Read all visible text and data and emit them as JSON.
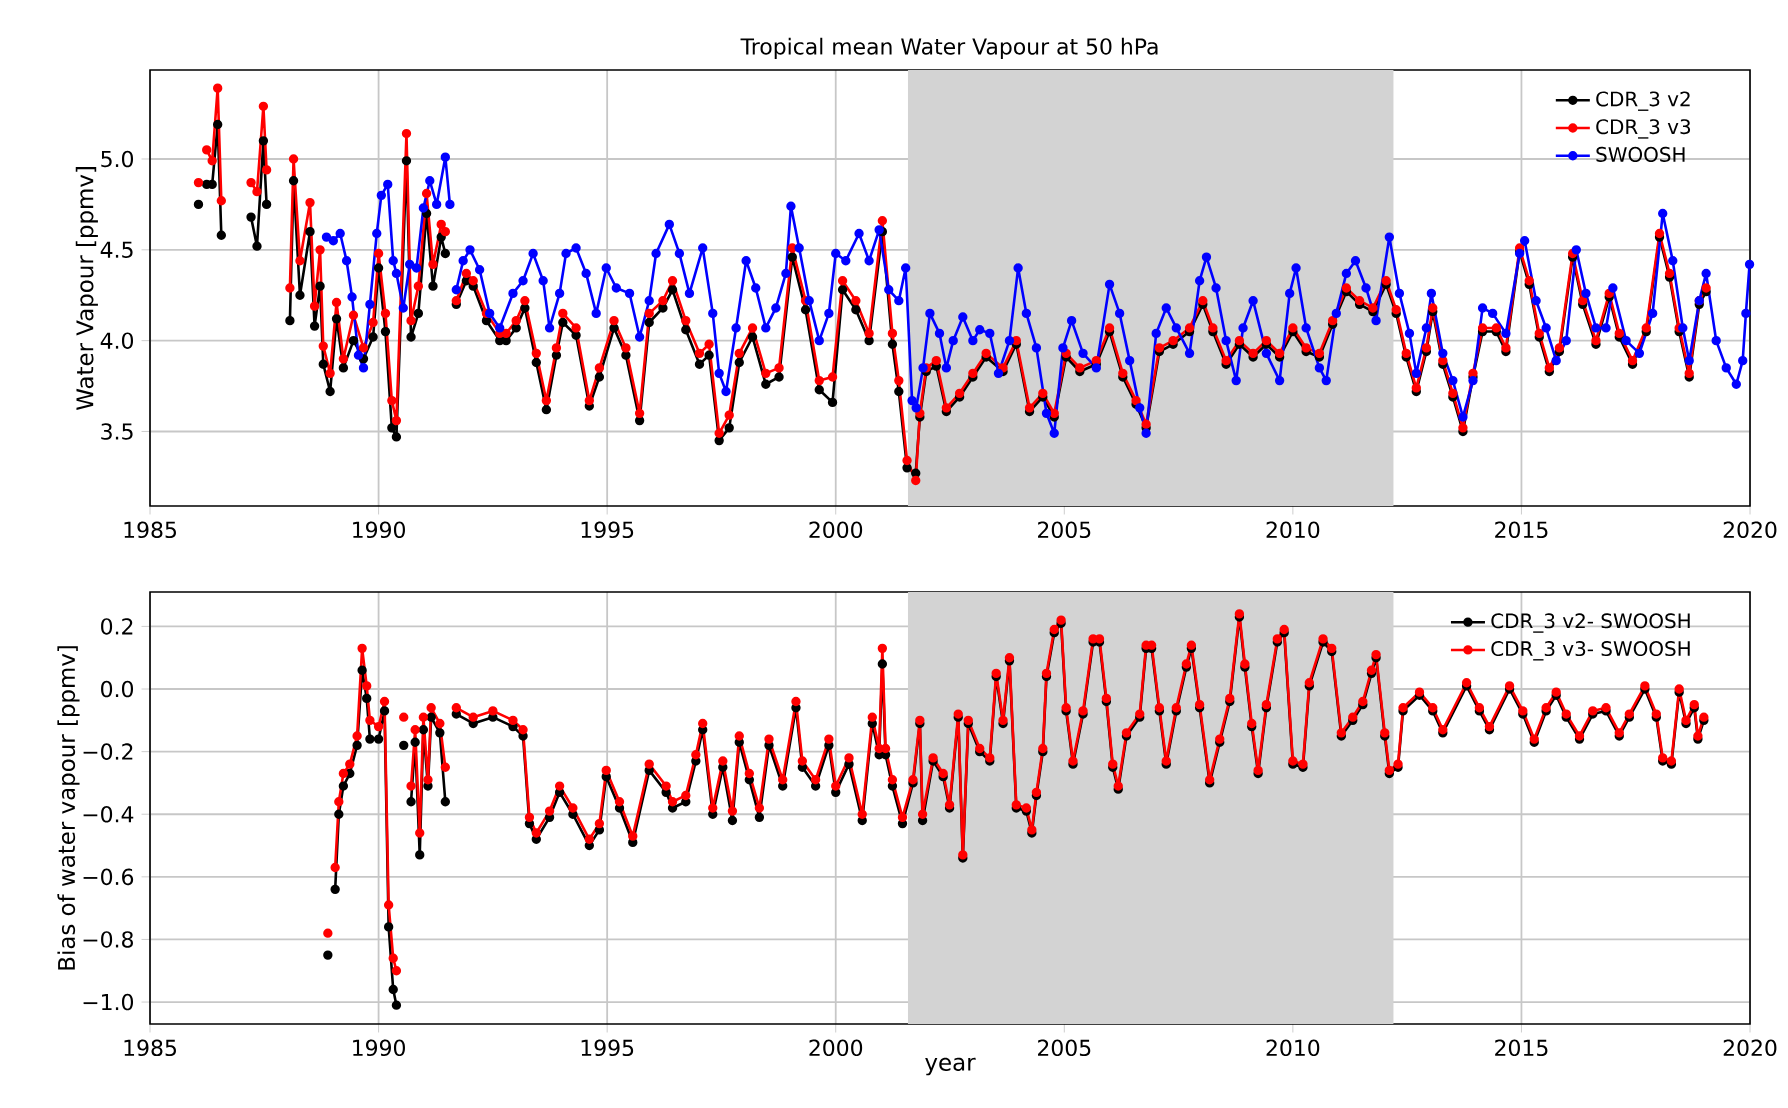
{
  "chart_data": [
    {
      "type": "line",
      "title": "Tropical mean Water Vapour at 50 hPa",
      "ylabel": "Water Vapour [ppmv]",
      "xlim": [
        1985,
        2020
      ],
      "xticks": [
        1985,
        1990,
        1995,
        2000,
        2005,
        2010,
        2015,
        2020
      ],
      "ylim": [
        3.09,
        5.49
      ],
      "yticks": [
        {
          "value": 3.5,
          "label": "3.5"
        },
        {
          "value": 4.0,
          "label": "4.0"
        },
        {
          "value": 4.5,
          "label": "4.5"
        },
        {
          "value": 5.0,
          "label": "5.0"
        }
      ],
      "grid": true,
      "legend": "top right",
      "marker": "circle",
      "bands": [
        {
          "axis": "x",
          "from": 2001.58,
          "to": 2012.2,
          "color": "#d3d3d3"
        }
      ],
      "series": [
        {
          "name": "CDR_3 v2",
          "color": "#000000",
          "x": [
            1986.06,
            1986.15,
            1986.24,
            1986.36,
            1986.48,
            1986.56,
            1986.9,
            1987.21,
            1987.34,
            1987.48,
            1987.55,
            1987.8,
            1988.06,
            1988.14,
            1988.28,
            1988.5,
            1988.6,
            1988.72,
            1988.79,
            1988.94,
            1989.08,
            1989.23,
            1989.45,
            1989.67,
            1989.88,
            1990.0,
            1990.15,
            1990.29,
            1990.39,
            1990.61,
            1990.71,
            1990.87,
            1991.05,
            1991.19,
            1991.37,
            1991.46,
            1991.6,
            1991.7,
            1991.92,
            1992.07,
            1992.36,
            1992.65,
            1992.79,
            1993.01,
            1993.2,
            1993.45,
            1993.67,
            1993.89,
            1994.03,
            1994.32,
            1994.61,
            1994.83,
            1995.15,
            1995.41,
            1995.71,
            1995.92,
            1996.22,
            1996.43,
            1996.72,
            1997.02,
            1997.23,
            1997.45,
            1997.67,
            1997.89,
            1998.18,
            1998.47,
            1998.76,
            1999.05,
            1999.34,
            1999.64,
            1999.93,
            2000.15,
            2000.44,
            2000.73,
            2001.02,
            2001.24,
            2001.38,
            2001.56,
            2001.75,
            2001.84,
            2001.98,
            2002.2,
            2002.42,
            2002.71,
            2003.0,
            2003.29,
            2003.66,
            2003.95,
            2004.24,
            2004.53,
            2004.78,
            2005.04,
            2005.34,
            2005.7,
            2005.99,
            2006.28,
            2006.57,
            2006.79,
            2007.08,
            2007.38,
            2007.74,
            2008.03,
            2008.25,
            2008.54,
            2008.83,
            2009.13,
            2009.42,
            2009.71,
            2010.0,
            2010.29,
            2010.58,
            2010.87,
            2011.17,
            2011.46,
            2011.75,
            2012.04,
            2012.26,
            2012.48,
            2012.7,
            2012.92,
            2013.06,
            2013.28,
            2013.5,
            2013.72,
            2013.94,
            2014.15,
            2014.45,
            2014.66,
            2014.96,
            2015.17,
            2015.39,
            2015.61,
            2015.83,
            2016.12,
            2016.34,
            2016.63,
            2016.92,
            2017.14,
            2017.43,
            2017.73,
            2018.02,
            2018.24,
            2018.45,
            2018.67,
            2018.89,
            2019.04
          ],
          "values": [
            4.75,
            null,
            4.86,
            4.86,
            5.19,
            4.58,
            null,
            4.68,
            4.52,
            5.1,
            4.75,
            null,
            4.11,
            4.88,
            4.25,
            4.6,
            4.08,
            4.3,
            3.87,
            3.72,
            4.12,
            3.85,
            4.0,
            3.9,
            4.02,
            4.4,
            4.05,
            3.52,
            3.47,
            4.99,
            4.02,
            4.15,
            4.7,
            4.3,
            4.57,
            4.48,
            null,
            4.2,
            4.33,
            4.3,
            4.11,
            4.0,
            4.0,
            4.07,
            4.18,
            3.88,
            3.62,
            3.92,
            4.1,
            4.03,
            3.64,
            3.8,
            4.07,
            3.92,
            3.56,
            4.1,
            4.18,
            4.28,
            4.06,
            3.87,
            3.92,
            3.45,
            3.52,
            3.88,
            4.02,
            3.76,
            3.8,
            4.46,
            4.17,
            3.73,
            3.66,
            4.28,
            4.17,
            4.0,
            4.6,
            3.98,
            3.72,
            3.3,
            3.27,
            3.58,
            3.83,
            3.86,
            3.61,
            3.69,
            3.8,
            3.91,
            3.83,
            3.98,
            3.61,
            3.69,
            3.58,
            3.91,
            3.83,
            3.87,
            4.05,
            3.8,
            3.65,
            3.52,
            3.94,
            3.98,
            4.05,
            4.2,
            4.05,
            3.87,
            3.98,
            3.91,
            3.98,
            3.91,
            4.05,
            3.94,
            3.91,
            4.09,
            4.27,
            4.2,
            4.16,
            4.31,
            4.15,
            3.91,
            3.72,
            3.94,
            4.16,
            3.87,
            3.69,
            3.5,
            3.8,
            4.05,
            4.05,
            3.94,
            4.49,
            4.31,
            4.02,
            3.83,
            3.94,
            4.46,
            4.2,
            3.98,
            4.24,
            4.02,
            3.87,
            4.05,
            4.57,
            4.35,
            4.05,
            3.8,
            4.2,
            4.27
          ]
        },
        {
          "name": "CDR_3 v3",
          "color": "#ff0000",
          "x": [
            1986.06,
            1986.15,
            1986.24,
            1986.36,
            1986.48,
            1986.56,
            1986.9,
            1987.21,
            1987.34,
            1987.48,
            1987.55,
            1987.8,
            1988.06,
            1988.14,
            1988.28,
            1988.5,
            1988.6,
            1988.72,
            1988.79,
            1988.94,
            1989.08,
            1989.23,
            1989.45,
            1989.67,
            1989.88,
            1990.0,
            1990.15,
            1990.29,
            1990.39,
            1990.61,
            1990.71,
            1990.87,
            1991.05,
            1991.19,
            1991.37,
            1991.46,
            1991.6,
            1991.7,
            1991.92,
            1992.07,
            1992.36,
            1992.65,
            1992.79,
            1993.01,
            1993.2,
            1993.45,
            1993.67,
            1993.89,
            1994.03,
            1994.32,
            1994.61,
            1994.83,
            1995.15,
            1995.41,
            1995.71,
            1995.92,
            1996.22,
            1996.43,
            1996.72,
            1997.02,
            1997.23,
            1997.45,
            1997.67,
            1997.89,
            1998.18,
            1998.47,
            1998.76,
            1999.05,
            1999.34,
            1999.64,
            1999.93,
            2000.15,
            2000.44,
            2000.73,
            2001.02,
            2001.24,
            2001.38,
            2001.56,
            2001.75,
            2001.84,
            2001.98,
            2002.2,
            2002.42,
            2002.71,
            2003.0,
            2003.29,
            2003.66,
            2003.95,
            2004.24,
            2004.53,
            2004.78,
            2005.04,
            2005.34,
            2005.7,
            2005.99,
            2006.28,
            2006.57,
            2006.79,
            2007.08,
            2007.38,
            2007.74,
            2008.03,
            2008.25,
            2008.54,
            2008.83,
            2009.13,
            2009.42,
            2009.71,
            2010.0,
            2010.29,
            2010.58,
            2010.87,
            2011.17,
            2011.46,
            2011.75,
            2012.04,
            2012.26,
            2012.48,
            2012.7,
            2012.92,
            2013.06,
            2013.28,
            2013.5,
            2013.72,
            2013.94,
            2014.15,
            2014.45,
            2014.66,
            2014.96,
            2015.17,
            2015.39,
            2015.61,
            2015.83,
            2016.12,
            2016.34,
            2016.63,
            2016.92,
            2017.14,
            2017.43,
            2017.73,
            2018.02,
            2018.24,
            2018.45,
            2018.67,
            2018.89,
            2019.04
          ],
          "values": [
            4.87,
            null,
            5.05,
            4.99,
            5.39,
            4.77,
            null,
            4.87,
            4.82,
            5.29,
            4.94,
            null,
            4.29,
            5.0,
            4.44,
            4.76,
            4.19,
            4.5,
            3.97,
            3.82,
            4.21,
            3.9,
            4.14,
            3.96,
            4.1,
            4.48,
            4.15,
            3.67,
            3.56,
            5.14,
            4.11,
            4.3,
            4.81,
            4.42,
            4.64,
            4.6,
            null,
            4.22,
            4.37,
            4.33,
            4.15,
            4.04,
            4.04,
            4.11,
            4.22,
            3.93,
            3.67,
            3.96,
            4.15,
            4.07,
            3.67,
            3.85,
            4.11,
            3.96,
            3.6,
            4.15,
            4.22,
            4.33,
            4.11,
            3.93,
            3.98,
            3.49,
            3.59,
            3.93,
            4.07,
            3.82,
            3.85,
            4.51,
            4.22,
            3.78,
            3.8,
            4.33,
            4.22,
            4.04,
            4.66,
            4.04,
            3.78,
            3.34,
            3.23,
            3.6,
            3.85,
            3.89,
            3.63,
            3.71,
            3.82,
            3.93,
            3.85,
            4.0,
            3.63,
            3.71,
            3.6,
            3.93,
            3.85,
            3.89,
            4.07,
            3.82,
            3.67,
            3.54,
            3.96,
            4.0,
            4.07,
            4.22,
            4.07,
            3.89,
            4.0,
            3.93,
            4.0,
            3.93,
            4.07,
            3.96,
            3.93,
            4.11,
            4.29,
            4.22,
            4.18,
            4.33,
            4.17,
            3.93,
            3.74,
            3.96,
            4.18,
            3.89,
            3.71,
            3.52,
            3.82,
            4.07,
            4.07,
            3.96,
            4.51,
            4.33,
            4.04,
            3.85,
            3.96,
            4.48,
            4.22,
            4.0,
            4.26,
            4.04,
            3.89,
            4.07,
            4.59,
            4.37,
            4.07,
            3.82,
            4.22,
            4.29
          ]
        },
        {
          "name": "SWOOSH",
          "color": "#0000ff",
          "x": [
            1988.86,
            1989.01,
            1989.16,
            1989.3,
            1989.42,
            1989.56,
            1989.67,
            1989.81,
            1989.96,
            1990.06,
            1990.2,
            1990.32,
            1990.39,
            1990.54,
            1990.68,
            1990.83,
            1990.98,
            1991.12,
            1991.27,
            1991.46,
            1991.56,
            1991.63,
            1991.7,
            1991.85,
            1992.0,
            1992.21,
            1992.43,
            1992.65,
            1992.94,
            1993.16,
            1993.38,
            1993.6,
            1993.74,
            1993.96,
            1994.1,
            1994.32,
            1994.54,
            1994.76,
            1994.98,
            1995.2,
            1995.49,
            1995.71,
            1995.92,
            1996.07,
            1996.36,
            1996.58,
            1996.8,
            1997.09,
            1997.31,
            1997.45,
            1997.6,
            1997.82,
            1998.04,
            1998.25,
            1998.47,
            1998.69,
            1998.91,
            1999.02,
            1999.2,
            1999.42,
            1999.64,
            1999.85,
            2000.0,
            2000.22,
            2000.51,
            2000.73,
            2000.95,
            2001.16,
            2001.38,
            2001.53,
            2001.67,
            2001.76,
            2001.91,
            2002.06,
            2002.27,
            2002.42,
            2002.57,
            2002.78,
            2003.0,
            2003.15,
            2003.37,
            2003.56,
            2003.8,
            2003.99,
            2004.17,
            2004.39,
            2004.61,
            2004.78,
            2004.97,
            2005.16,
            2005.41,
            2005.7,
            2005.99,
            2006.21,
            2006.43,
            2006.65,
            2006.79,
            2007.01,
            2007.23,
            2007.45,
            2007.74,
            2007.96,
            2008.11,
            2008.32,
            2008.54,
            2008.76,
            2008.91,
            2009.13,
            2009.42,
            2009.71,
            2009.93,
            2010.07,
            2010.29,
            2010.58,
            2010.73,
            2010.95,
            2011.17,
            2011.37,
            2011.6,
            2011.82,
            2012.11,
            2012.33,
            2012.55,
            2012.7,
            2012.92,
            2013.03,
            2013.28,
            2013.5,
            2013.72,
            2013.94,
            2014.15,
            2014.37,
            2014.66,
            2014.96,
            2015.07,
            2015.32,
            2015.54,
            2015.76,
            2015.98,
            2016.2,
            2016.41,
            2016.63,
            2016.85,
            2017.0,
            2017.29,
            2017.58,
            2017.87,
            2018.09,
            2018.31,
            2018.53,
            2018.67,
            2018.89,
            2019.04,
            2019.26,
            2019.48,
            2019.7,
            2019.84,
            2019.91,
            2019.99
          ],
          "values": [
            4.57,
            4.55,
            4.59,
            4.44,
            4.24,
            3.92,
            3.85,
            4.2,
            4.59,
            4.8,
            4.86,
            4.44,
            4.37,
            4.18,
            4.42,
            4.4,
            4.73,
            4.88,
            4.75,
            5.01,
            4.75,
            null,
            4.28,
            4.44,
            4.5,
            4.39,
            4.15,
            4.07,
            4.26,
            4.33,
            4.48,
            4.33,
            4.07,
            4.26,
            4.48,
            4.51,
            4.37,
            4.15,
            4.4,
            4.29,
            4.26,
            4.02,
            4.22,
            4.48,
            4.64,
            4.48,
            4.26,
            4.51,
            4.15,
            3.82,
            3.72,
            4.07,
            4.44,
            4.29,
            4.07,
            4.18,
            4.37,
            4.74,
            4.51,
            4.22,
            4.0,
            4.15,
            4.48,
            4.44,
            4.59,
            4.44,
            4.61,
            4.28,
            4.22,
            4.4,
            3.67,
            3.63,
            3.85,
            4.15,
            4.04,
            3.85,
            4.0,
            4.13,
            4.0,
            4.06,
            4.04,
            3.82,
            4.0,
            4.4,
            4.15,
            3.96,
            3.6,
            3.49,
            3.96,
            4.11,
            3.93,
            3.85,
            4.31,
            4.15,
            3.89,
            3.63,
            3.49,
            4.04,
            4.18,
            4.07,
            3.93,
            4.33,
            4.46,
            4.29,
            4.0,
            3.78,
            4.07,
            4.22,
            3.93,
            3.78,
            4.26,
            4.4,
            4.07,
            3.85,
            3.78,
            4.15,
            4.37,
            4.44,
            4.29,
            4.11,
            4.57,
            4.26,
            4.04,
            3.82,
            4.07,
            4.26,
            3.93,
            3.78,
            3.58,
            3.78,
            4.18,
            4.15,
            4.04,
            4.48,
            4.55,
            4.22,
            4.07,
            3.89,
            4.0,
            4.5,
            4.26,
            4.07,
            4.07,
            4.29,
            4.0,
            3.93,
            4.15,
            4.7,
            4.44,
            4.07,
            3.89,
            4.22,
            4.37,
            4.0,
            3.85,
            3.76,
            3.89,
            4.15,
            4.42
          ]
        }
      ]
    },
    {
      "type": "line",
      "xlabel": "year",
      "ylabel": "Bias of water vapour [ppmv]",
      "xlim": [
        1985,
        2020
      ],
      "xticks": [
        1985,
        1990,
        1995,
        2000,
        2005,
        2010,
        2015,
        2020
      ],
      "ylim": [
        -1.07,
        0.31
      ],
      "yticks": [
        {
          "value": -1.0,
          "label": "−1.0"
        },
        {
          "value": -0.8,
          "label": "−0.8"
        },
        {
          "value": -0.6,
          "label": "−0.6"
        },
        {
          "value": -0.4,
          "label": "−0.4"
        },
        {
          "value": -0.2,
          "label": "−0.2"
        },
        {
          "value": 0.0,
          "label": "0.0"
        },
        {
          "value": 0.2,
          "label": "0.2"
        }
      ],
      "grid": true,
      "legend": "top right",
      "marker": "circle",
      "bands": [
        {
          "axis": "x",
          "from": 2001.58,
          "to": 2012.2,
          "color": "#d3d3d3"
        }
      ],
      "series": [
        {
          "name": "CDR_3 v2- SWOOSH",
          "color": "#000000",
          "x": [
            1988.89,
            1988.97,
            1989.05,
            1989.13,
            1989.23,
            1989.37,
            1989.53,
            1989.64,
            1989.74,
            1989.81,
            1990.0,
            1990.13,
            1990.22,
            1990.32,
            1990.39,
            1990.47,
            1990.55,
            1990.63,
            1990.71,
            1990.8,
            1990.9,
            1990.98,
            1991.08,
            1991.15,
            1991.34,
            1991.46,
            1991.58,
            1991.7,
            1992.07,
            1992.5,
            1992.94,
            1993.16,
            1993.3,
            1993.45,
            1993.74,
            1993.96,
            1994.25,
            1994.61,
            1994.83,
            1994.98,
            1995.27,
            1995.56,
            1995.92,
            1996.29,
            1996.43,
            1996.72,
            1996.94,
            1997.09,
            1997.31,
            1997.53,
            1997.74,
            1997.89,
            1998.11,
            1998.33,
            1998.54,
            1998.84,
            1999.13,
            1999.27,
            1999.56,
            1999.85,
            2000.0,
            2000.29,
            2000.58,
            2000.8,
            2000.95,
            2001.02,
            2001.09,
            2001.24,
            2001.46,
            2001.69,
            2001.84,
            2001.9,
            2002.13,
            2002.35,
            2002.49,
            2002.68,
            2002.78,
            2002.9,
            2003.15,
            2003.37,
            2003.51,
            2003.66,
            2003.8,
            2003.95,
            2004.17,
            2004.29,
            2004.39,
            2004.53,
            2004.61,
            2004.78,
            2004.93,
            2005.04,
            2005.19,
            2005.41,
            2005.63,
            2005.77,
            2005.92,
            2006.06,
            2006.18,
            2006.36,
            2006.65,
            2006.79,
            2006.91,
            2007.08,
            2007.23,
            2007.45,
            2007.67,
            2007.78,
            2007.96,
            2008.18,
            2008.4,
            2008.62,
            2008.83,
            2008.95,
            2009.1,
            2009.24,
            2009.42,
            2009.66,
            2009.81,
            2010.0,
            2010.22,
            2010.36,
            2010.66,
            2010.85,
            2011.06,
            2011.31,
            2011.53,
            2011.72,
            2011.82,
            2012.01,
            2012.11,
            2012.3,
            2012.41,
            2012.77,
            2013.06,
            2013.28,
            2013.8,
            2014.08,
            2014.3,
            2014.74,
            2015.03,
            2015.28,
            2015.54,
            2015.76,
            2015.98,
            2016.27,
            2016.56,
            2016.85,
            2017.14,
            2017.36,
            2017.7,
            2017.95,
            2018.09,
            2018.28,
            2018.45,
            2018.6,
            2018.78,
            2018.86,
            2018.99
          ],
          "values": [
            -0.85,
            null,
            -0.64,
            -0.4,
            -0.31,
            -0.27,
            -0.18,
            0.06,
            -0.03,
            -0.16,
            -0.16,
            -0.07,
            -0.76,
            -0.96,
            -1.01,
            null,
            -0.18,
            null,
            -0.36,
            -0.17,
            -0.53,
            -0.13,
            -0.31,
            -0.09,
            -0.14,
            -0.36,
            null,
            -0.08,
            -0.11,
            -0.09,
            -0.12,
            -0.15,
            -0.43,
            -0.48,
            -0.41,
            -0.33,
            -0.4,
            -0.5,
            -0.45,
            -0.28,
            -0.38,
            -0.49,
            -0.26,
            -0.33,
            -0.38,
            -0.36,
            -0.23,
            -0.13,
            -0.4,
            -0.25,
            -0.42,
            -0.17,
            -0.29,
            -0.41,
            -0.18,
            -0.31,
            -0.06,
            -0.25,
            -0.31,
            -0.18,
            -0.33,
            -0.24,
            -0.42,
            -0.11,
            -0.21,
            0.08,
            -0.21,
            -0.31,
            -0.43,
            -0.3,
            -0.11,
            -0.42,
            -0.23,
            -0.28,
            -0.38,
            -0.09,
            -0.54,
            -0.11,
            -0.2,
            -0.23,
            0.04,
            -0.11,
            0.09,
            -0.38,
            -0.39,
            -0.46,
            -0.34,
            -0.2,
            0.04,
            0.18,
            0.21,
            -0.07,
            -0.24,
            -0.08,
            0.15,
            0.15,
            -0.04,
            -0.25,
            -0.32,
            -0.15,
            -0.09,
            0.13,
            0.13,
            -0.07,
            -0.24,
            -0.07,
            0.07,
            0.13,
            -0.06,
            -0.3,
            -0.17,
            -0.04,
            0.23,
            0.07,
            -0.12,
            -0.27,
            -0.06,
            0.15,
            0.18,
            -0.24,
            -0.25,
            0.01,
            0.15,
            0.12,
            -0.15,
            -0.1,
            -0.05,
            0.05,
            0.1,
            -0.15,
            -0.27,
            -0.25,
            -0.07,
            -0.02,
            -0.07,
            -0.14,
            0.01,
            -0.07,
            -0.13,
            0.0,
            -0.08,
            -0.17,
            -0.07,
            -0.02,
            -0.09,
            -0.16,
            -0.08,
            -0.07,
            -0.15,
            -0.09,
            0.0,
            -0.09,
            -0.23,
            -0.24,
            -0.01,
            -0.11,
            -0.06,
            -0.16,
            -0.1
          ]
        },
        {
          "name": "CDR_3 v3- SWOOSH",
          "color": "#ff0000",
          "x": [
            1988.89,
            1988.97,
            1989.05,
            1989.13,
            1989.23,
            1989.37,
            1989.53,
            1989.64,
            1989.74,
            1989.81,
            1990.0,
            1990.13,
            1990.22,
            1990.32,
            1990.39,
            1990.47,
            1990.55,
            1990.63,
            1990.71,
            1990.8,
            1990.9,
            1990.98,
            1991.08,
            1991.15,
            1991.34,
            1991.46,
            1991.58,
            1991.7,
            1992.07,
            1992.5,
            1992.94,
            1993.16,
            1993.3,
            1993.45,
            1993.74,
            1993.96,
            1994.25,
            1994.61,
            1994.83,
            1994.98,
            1995.27,
            1995.56,
            1995.92,
            1996.29,
            1996.43,
            1996.72,
            1996.94,
            1997.09,
            1997.31,
            1997.53,
            1997.74,
            1997.89,
            1998.11,
            1998.33,
            1998.54,
            1998.84,
            1999.13,
            1999.27,
            1999.56,
            1999.85,
            2000.0,
            2000.29,
            2000.58,
            2000.8,
            2000.95,
            2001.02,
            2001.09,
            2001.24,
            2001.46,
            2001.69,
            2001.84,
            2001.9,
            2002.13,
            2002.35,
            2002.49,
            2002.68,
            2002.78,
            2002.9,
            2003.15,
            2003.37,
            2003.51,
            2003.66,
            2003.8,
            2003.95,
            2004.17,
            2004.29,
            2004.39,
            2004.53,
            2004.61,
            2004.78,
            2004.93,
            2005.04,
            2005.19,
            2005.41,
            2005.63,
            2005.77,
            2005.92,
            2006.06,
            2006.18,
            2006.36,
            2006.65,
            2006.79,
            2006.91,
            2007.08,
            2007.23,
            2007.45,
            2007.67,
            2007.78,
            2007.96,
            2008.18,
            2008.4,
            2008.62,
            2008.83,
            2008.95,
            2009.1,
            2009.24,
            2009.42,
            2009.66,
            2009.81,
            2010.0,
            2010.22,
            2010.36,
            2010.66,
            2010.85,
            2011.06,
            2011.31,
            2011.53,
            2011.72,
            2011.82,
            2012.01,
            2012.11,
            2012.3,
            2012.41,
            2012.77,
            2013.06,
            2013.28,
            2013.8,
            2014.08,
            2014.3,
            2014.74,
            2015.03,
            2015.28,
            2015.54,
            2015.76,
            2015.98,
            2016.27,
            2016.56,
            2016.85,
            2017.14,
            2017.36,
            2017.7,
            2017.95,
            2018.09,
            2018.28,
            2018.45,
            2018.6,
            2018.78,
            2018.86,
            2018.99
          ],
          "values": [
            -0.78,
            null,
            -0.57,
            -0.36,
            -0.27,
            -0.24,
            -0.15,
            0.13,
            0.01,
            -0.1,
            -0.12,
            -0.04,
            -0.69,
            -0.86,
            -0.9,
            null,
            -0.09,
            null,
            -0.31,
            -0.13,
            -0.46,
            -0.09,
            -0.29,
            -0.06,
            -0.11,
            -0.25,
            null,
            -0.06,
            -0.09,
            -0.07,
            -0.1,
            -0.13,
            -0.41,
            -0.46,
            -0.39,
            -0.31,
            -0.38,
            -0.48,
            -0.43,
            -0.26,
            -0.36,
            -0.47,
            -0.24,
            -0.31,
            -0.36,
            -0.34,
            -0.21,
            -0.11,
            -0.38,
            -0.23,
            -0.39,
            -0.15,
            -0.27,
            -0.38,
            -0.16,
            -0.29,
            -0.04,
            -0.23,
            -0.29,
            -0.16,
            -0.31,
            -0.22,
            -0.4,
            -0.09,
            -0.19,
            0.13,
            -0.19,
            -0.29,
            -0.41,
            -0.29,
            -0.1,
            -0.4,
            -0.22,
            -0.27,
            -0.37,
            -0.08,
            -0.53,
            -0.1,
            -0.19,
            -0.22,
            0.05,
            -0.1,
            0.1,
            -0.37,
            -0.38,
            -0.45,
            -0.33,
            -0.19,
            0.05,
            0.19,
            0.22,
            -0.06,
            -0.23,
            -0.07,
            0.16,
            0.16,
            -0.03,
            -0.24,
            -0.31,
            -0.14,
            -0.08,
            0.14,
            0.14,
            -0.06,
            -0.23,
            -0.06,
            0.08,
            0.14,
            -0.05,
            -0.29,
            -0.16,
            -0.03,
            0.24,
            0.08,
            -0.11,
            -0.26,
            -0.05,
            0.16,
            0.19,
            -0.23,
            -0.24,
            0.02,
            0.16,
            0.13,
            -0.14,
            -0.09,
            -0.04,
            0.06,
            0.11,
            -0.14,
            -0.26,
            -0.24,
            -0.06,
            -0.01,
            -0.06,
            -0.13,
            0.02,
            -0.06,
            -0.12,
            0.01,
            -0.07,
            -0.16,
            -0.06,
            -0.01,
            -0.08,
            -0.15,
            -0.07,
            -0.06,
            -0.14,
            -0.08,
            0.01,
            -0.08,
            -0.22,
            -0.23,
            0.0,
            -0.1,
            -0.05,
            -0.15,
            -0.09
          ]
        }
      ]
    }
  ]
}
